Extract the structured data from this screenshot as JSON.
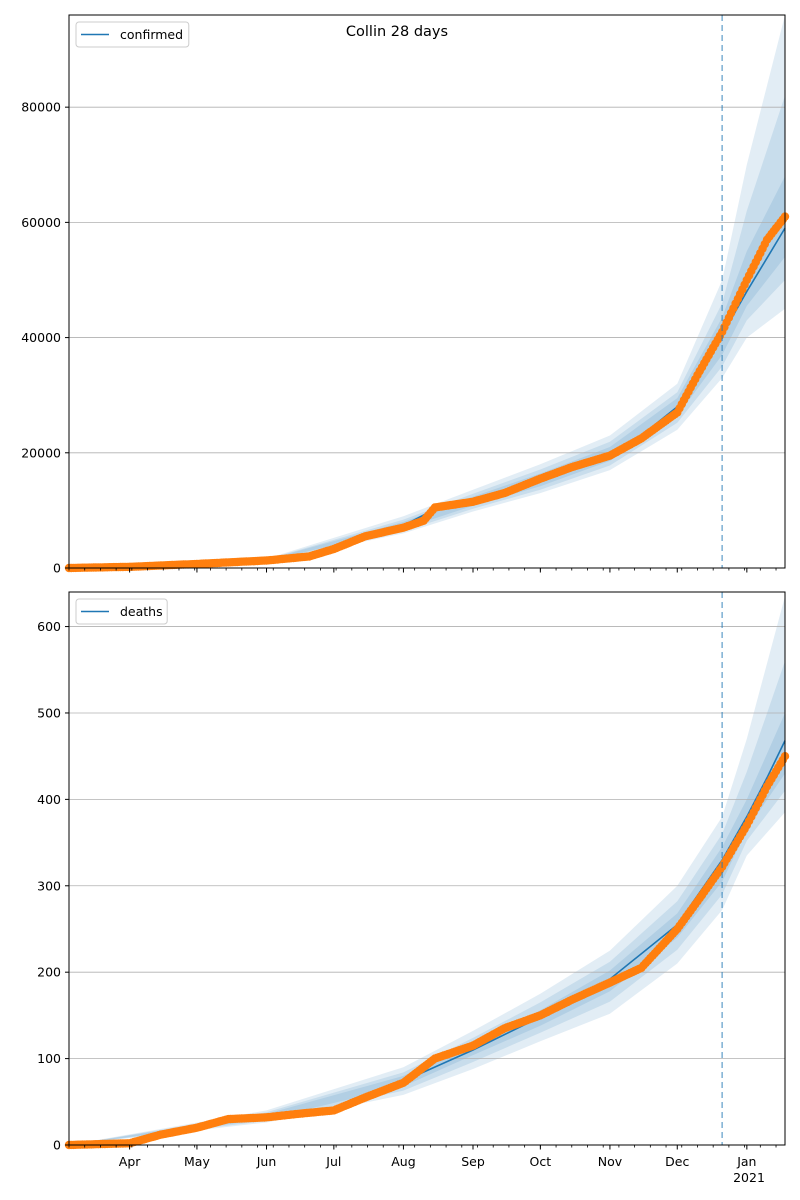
{
  "title": "Collin 28 days",
  "colors": {
    "model_line": "#1f77b4",
    "observed_points": "#ff7f0e",
    "band": "#1f77b4",
    "forecast_line": "#1f77b4",
    "grid": "#b0b0b0"
  },
  "x_axis": {
    "tick_labels": [
      "Apr",
      "May",
      "Jun",
      "Jul",
      "Aug",
      "Sep",
      "Oct",
      "Nov",
      "Dec",
      "Jan"
    ],
    "year_label": "2021"
  },
  "chart_data": [
    {
      "type": "line",
      "title": "Collin 28 days",
      "legend": [
        "confirmed"
      ],
      "legend_position": "top-left",
      "grid": "horizontal",
      "xlim": [
        "2020-03-05",
        "2021-01-18"
      ],
      "ylim": [
        0,
        96000
      ],
      "y_ticks": [
        0,
        20000,
        40000,
        60000,
        80000
      ],
      "forecast_start": "2020-12-21",
      "series": [
        {
          "name": "confirmed",
          "kind": "model",
          "x": [
            "2020-03-05",
            "2020-04-01",
            "2020-05-01",
            "2020-06-01",
            "2020-07-01",
            "2020-07-15",
            "2020-08-01",
            "2020-08-15",
            "2020-09-01",
            "2020-09-15",
            "2020-10-01",
            "2020-10-15",
            "2020-11-01",
            "2020-11-15",
            "2020-12-01",
            "2020-12-10",
            "2020-12-21",
            "2021-01-01",
            "2021-01-10",
            "2021-01-18"
          ],
          "values": [
            0,
            200,
            700,
            1300,
            3300,
            5200,
            7400,
            10200,
            11600,
            13200,
            15300,
            17200,
            19800,
            23000,
            28000,
            33000,
            40500,
            48000,
            53800,
            59000
          ]
        },
        {
          "name": "",
          "kind": "observed",
          "x": [
            "2020-03-05",
            "2020-04-01",
            "2020-05-01",
            "2020-06-01",
            "2020-06-20",
            "2020-07-01",
            "2020-07-15",
            "2020-08-01",
            "2020-08-10",
            "2020-08-15",
            "2020-09-01",
            "2020-09-15",
            "2020-10-01",
            "2020-10-15",
            "2020-11-01",
            "2020-11-15",
            "2020-12-01",
            "2020-12-10",
            "2020-12-21",
            "2021-01-01",
            "2021-01-10",
            "2021-01-18"
          ],
          "values": [
            0,
            200,
            700,
            1300,
            2000,
            3300,
            5500,
            7000,
            8200,
            10500,
            11500,
            13000,
            15500,
            17500,
            19500,
            22500,
            27000,
            33500,
            41000,
            50000,
            57000,
            61000
          ]
        }
      ],
      "bands": [
        {
          "x": [
            "2020-03-05",
            "2020-06-01",
            "2020-08-01",
            "2020-09-01",
            "2020-10-01",
            "2020-11-01",
            "2020-12-01",
            "2020-12-21",
            "2021-01-01",
            "2021-01-18"
          ],
          "lower": [
            0,
            1100,
            6000,
            9800,
            13000,
            17000,
            24000,
            33000,
            40000,
            45000
          ],
          "upper": [
            0,
            1600,
            9000,
            13600,
            18000,
            23000,
            32000,
            50000,
            70000,
            96000
          ]
        },
        {
          "x": [
            "2020-03-05",
            "2020-06-01",
            "2020-08-01",
            "2020-09-01",
            "2020-10-01",
            "2020-11-01",
            "2020-12-01",
            "2020-12-21",
            "2021-01-01",
            "2021-01-18"
          ],
          "lower": [
            0,
            1150,
            6400,
            10300,
            13600,
            17800,
            25200,
            35000,
            43000,
            50000
          ],
          "upper": [
            0,
            1500,
            8400,
            12900,
            17100,
            21900,
            30500,
            46000,
            62000,
            82000
          ]
        },
        {
          "x": [
            "2020-03-05",
            "2020-06-01",
            "2020-08-01",
            "2020-09-01",
            "2020-10-01",
            "2020-11-01",
            "2020-12-01",
            "2020-12-21",
            "2021-01-01",
            "2021-01-18"
          ],
          "lower": [
            0,
            1200,
            6800,
            10800,
            14200,
            18600,
            26400,
            37000,
            45500,
            54000
          ],
          "upper": [
            0,
            1420,
            8000,
            12400,
            16400,
            21000,
            29500,
            43500,
            55000,
            68000
          ]
        }
      ]
    },
    {
      "type": "line",
      "title": "",
      "legend": [
        "deaths"
      ],
      "legend_position": "top-left",
      "grid": "horizontal",
      "xlim": [
        "2020-03-05",
        "2021-01-18"
      ],
      "ylim": [
        0,
        640
      ],
      "y_ticks": [
        0,
        100,
        200,
        300,
        400,
        500,
        600
      ],
      "forecast_start": "2020-12-21",
      "series": [
        {
          "name": "deaths",
          "kind": "model",
          "x": [
            "2020-03-05",
            "2020-04-01",
            "2020-05-01",
            "2020-06-01",
            "2020-07-01",
            "2020-08-01",
            "2020-09-01",
            "2020-10-01",
            "2020-11-01",
            "2020-12-01",
            "2020-12-21",
            "2021-01-01",
            "2021-01-10",
            "2021-01-18"
          ],
          "values": [
            0,
            2,
            22,
            33,
            40,
            74,
            110,
            148,
            192,
            255,
            330,
            380,
            425,
            468
          ]
        },
        {
          "name": "",
          "kind": "observed",
          "x": [
            "2020-03-05",
            "2020-04-01",
            "2020-04-15",
            "2020-05-01",
            "2020-05-15",
            "2020-06-01",
            "2020-06-15",
            "2020-07-01",
            "2020-07-15",
            "2020-08-01",
            "2020-08-15",
            "2020-09-01",
            "2020-09-15",
            "2020-10-01",
            "2020-10-15",
            "2020-11-01",
            "2020-11-15",
            "2020-12-01",
            "2020-12-10",
            "2020-12-21",
            "2021-01-01",
            "2021-01-10",
            "2021-01-18"
          ],
          "values": [
            0,
            2,
            12,
            20,
            30,
            32,
            36,
            40,
            55,
            72,
            100,
            115,
            135,
            150,
            168,
            188,
            205,
            250,
            282,
            322,
            370,
            415,
            450
          ]
        }
      ],
      "bands": [
        {
          "x": [
            "2020-03-05",
            "2020-06-01",
            "2020-08-01",
            "2020-09-01",
            "2020-10-01",
            "2020-11-01",
            "2020-12-01",
            "2020-12-21",
            "2021-01-01",
            "2021-01-18"
          ],
          "lower": [
            0,
            26,
            58,
            88,
            120,
            152,
            210,
            272,
            335,
            385
          ],
          "upper": [
            0,
            40,
            90,
            132,
            175,
            225,
            300,
            380,
            470,
            635
          ]
        },
        {
          "x": [
            "2020-03-05",
            "2020-06-01",
            "2020-08-01",
            "2020-09-01",
            "2020-10-01",
            "2020-11-01",
            "2020-12-01",
            "2020-12-21",
            "2021-01-01",
            "2021-01-18"
          ],
          "lower": [
            0,
            28,
            63,
            96,
            130,
            166,
            226,
            290,
            352,
            410
          ],
          "upper": [
            0,
            38,
            84,
            124,
            165,
            212,
            282,
            360,
            432,
            560
          ]
        },
        {
          "x": [
            "2020-03-05",
            "2020-06-01",
            "2020-08-01",
            "2020-09-01",
            "2020-10-01",
            "2020-11-01",
            "2020-12-01",
            "2020-12-21",
            "2021-01-01",
            "2021-01-18"
          ],
          "lower": [
            0,
            30,
            68,
            104,
            138,
            178,
            240,
            305,
            365,
            430
          ],
          "upper": [
            0,
            36,
            80,
            117,
            156,
            202,
            268,
            345,
            400,
            500
          ]
        }
      ]
    }
  ]
}
